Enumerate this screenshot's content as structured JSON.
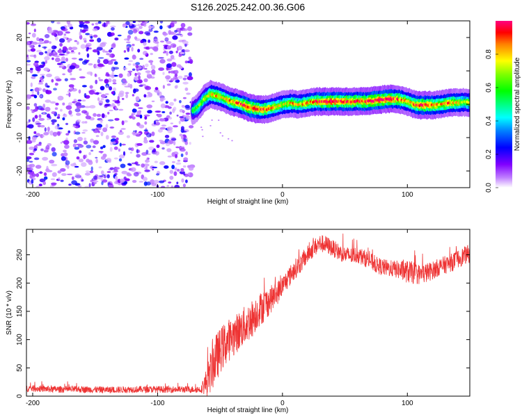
{
  "title": "S126.2025.242.00.36.G06",
  "chart_data": [
    {
      "type": "heatmap",
      "title": "S126.2025.242.00.36.G06",
      "xlabel": "Height of straight line (km)",
      "ylabel": "Frequency (Hz)",
      "xlim": [
        -205,
        150
      ],
      "ylim": [
        -25,
        25
      ],
      "xticks": [
        -200,
        -100,
        0,
        100
      ],
      "yticks": [
        -20,
        -10,
        0,
        10,
        20
      ],
      "colorbar": {
        "label": "Normalized spectral amplitude",
        "range": [
          0,
          1
        ],
        "ticks": [
          0.0,
          0.2,
          0.4,
          0.6,
          0.8
        ]
      },
      "noise_region": {
        "x_from": -205,
        "x_to": -72,
        "y_from": -25,
        "y_to": 25,
        "amplitude": [
          0.02,
          0.25
        ]
      },
      "ridge": {
        "x": [
          -72,
          -68,
          -63,
          -58,
          -53,
          -48,
          -43,
          -38,
          -33,
          -28,
          -23,
          -18,
          -13,
          -8,
          -3,
          2,
          7,
          12,
          17,
          22,
          27,
          32,
          37,
          42,
          47,
          52,
          57,
          62,
          67,
          72,
          77,
          82,
          87,
          92,
          97,
          102,
          107,
          112,
          117,
          122,
          127,
          132,
          137,
          142,
          147,
          150
        ],
        "freq": [
          -2.0,
          -1.0,
          1.5,
          3.0,
          2.5,
          2.0,
          1.0,
          0.5,
          0.0,
          -0.8,
          -1.3,
          -1.6,
          -1.5,
          -1.0,
          -0.5,
          0.0,
          0.3,
          0.0,
          0.2,
          0.6,
          0.8,
          0.8,
          0.8,
          0.9,
          0.8,
          0.8,
          0.8,
          0.9,
          0.8,
          1.0,
          1.3,
          1.5,
          1.6,
          1.5,
          1.2,
          0.5,
          -0.2,
          -0.3,
          -0.2,
          -0.3,
          0.0,
          0.3,
          0.5,
          0.5,
          0.6,
          0.5
        ],
        "amplitude": [
          0.55,
          0.6,
          0.7,
          0.75,
          0.8,
          0.75,
          0.8,
          0.85,
          0.9,
          0.95,
          0.95,
          0.9,
          0.85,
          0.8,
          0.75,
          0.7,
          0.8,
          0.75,
          0.8,
          0.85,
          0.9,
          0.95,
          0.98,
          0.98,
          0.95,
          0.95,
          0.9,
          0.92,
          0.95,
          0.98,
          0.98,
          0.95,
          0.95,
          0.9,
          0.8,
          0.75,
          0.9,
          0.95,
          0.9,
          0.85,
          0.8,
          0.85,
          0.8,
          0.75,
          0.7,
          0.7
        ]
      }
    },
    {
      "type": "line",
      "xlabel": "Height of straight line (km)",
      "ylabel": "SNR (10 * v/v)",
      "xlim": [
        -205,
        150
      ],
      "ylim": [
        0,
        295
      ],
      "xticks": [
        -200,
        -100,
        0,
        100
      ],
      "yticks": [
        0,
        50,
        100,
        150,
        200,
        250
      ],
      "color": "#ee3333",
      "series": [
        {
          "name": "SNR",
          "x": [
            -205,
            -180,
            -160,
            -140,
            -120,
            -100,
            -80,
            -65,
            -60,
            -55,
            -50,
            -45,
            -40,
            -35,
            -30,
            -25,
            -20,
            -15,
            -10,
            -5,
            0,
            5,
            10,
            15,
            20,
            25,
            30,
            35,
            40,
            45,
            50,
            55,
            60,
            65,
            70,
            75,
            80,
            85,
            90,
            95,
            100,
            105,
            110,
            115,
            120,
            125,
            130,
            135,
            140,
            145,
            150
          ],
          "y": [
            14,
            12,
            12,
            11,
            12,
            12,
            12,
            12,
            28,
            60,
            80,
            95,
            105,
            115,
            125,
            135,
            150,
            160,
            170,
            180,
            195,
            210,
            225,
            235,
            250,
            262,
            270,
            268,
            262,
            255,
            250,
            248,
            250,
            245,
            240,
            232,
            228,
            226,
            225,
            222,
            220,
            218,
            215,
            218,
            222,
            228,
            232,
            236,
            242,
            248,
            252
          ],
          "noise": [
            6,
            6,
            6,
            6,
            6,
            6,
            6,
            6,
            30,
            45,
            40,
            40,
            35,
            35,
            35,
            35,
            30,
            30,
            25,
            22,
            18,
            18,
            18,
            16,
            16,
            16,
            16,
            16,
            15,
            15,
            15,
            15,
            15,
            15,
            15,
            15,
            15,
            15,
            15,
            18,
            20,
            20,
            18,
            18,
            16,
            16,
            16,
            16,
            16,
            16,
            16
          ]
        }
      ]
    }
  ]
}
